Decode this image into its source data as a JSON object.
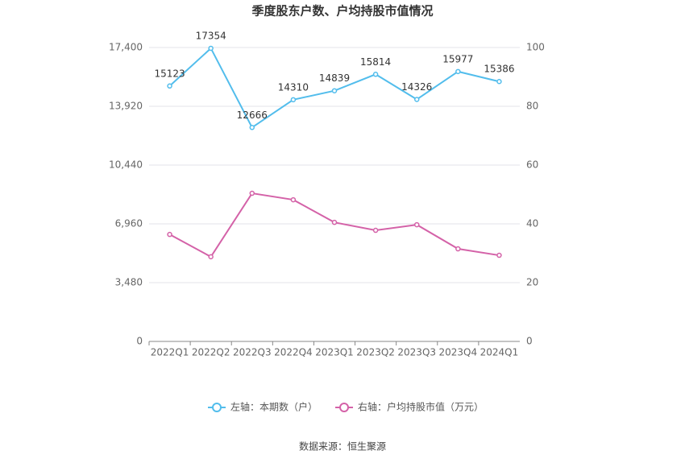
{
  "chart_data": {
    "type": "line",
    "title": "季度股东户数、户均持股市值情况",
    "categories": [
      "2022Q1",
      "2022Q2",
      "2022Q3",
      "2022Q4",
      "2023Q1",
      "2023Q2",
      "2023Q3",
      "2023Q4",
      "2024Q1"
    ],
    "series": [
      {
        "name": "左轴：本期数（户）",
        "color": "#52bdec",
        "values": [
          15123,
          17354,
          12666,
          14310,
          14839,
          15814,
          14326,
          15977,
          15386
        ],
        "show_labels": true
      },
      {
        "name": "右轴：户均持股市值（万元）",
        "color": "#d462a8",
        "axis": "y2",
        "values": [
          36.4,
          28.8,
          50.4,
          48.2,
          40.5,
          37.8,
          39.7,
          31.5,
          29.3
        ],
        "show_labels": false
      }
    ],
    "ylim": [
      0,
      17400
    ],
    "yticks": [
      0,
      {
        "value": 3480,
        "label": "3,480"
      },
      {
        "value": 6960,
        "label": "6,960"
      },
      {
        "value": 10440,
        "label": "10,440"
      },
      {
        "value": 13920,
        "label": "13,920"
      },
      {
        "value": 17400,
        "label": "17,400"
      }
    ],
    "y2lim": [
      0,
      100
    ],
    "y2ticks": [
      0,
      20,
      40,
      60,
      80,
      100
    ],
    "grid": true,
    "legend": "bottom",
    "source": "数据来源：恒生聚源"
  }
}
